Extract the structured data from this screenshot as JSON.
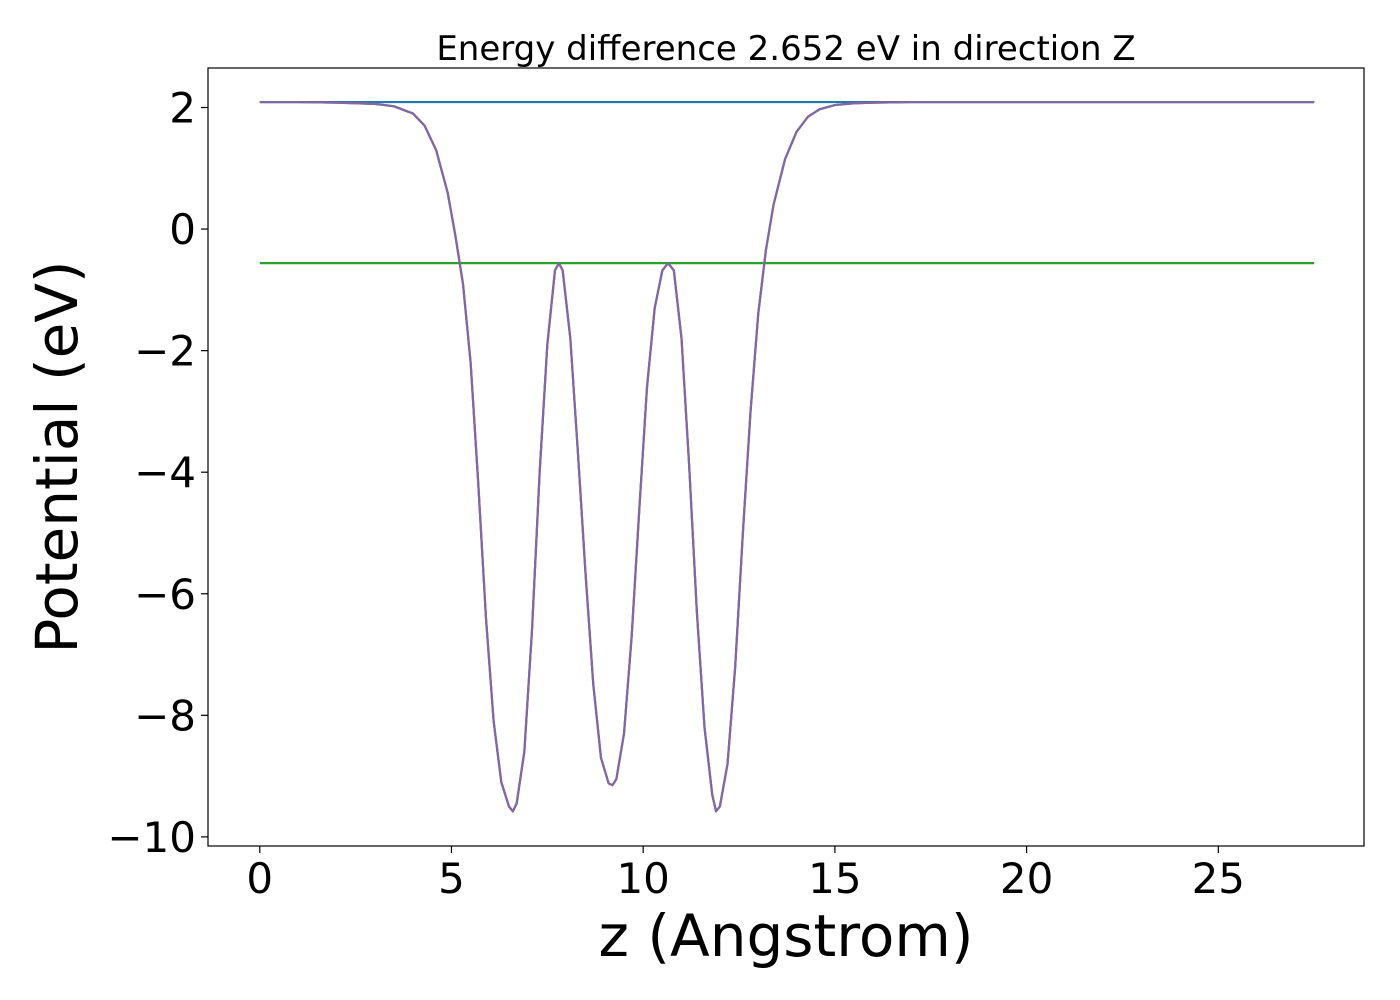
{
  "chart_data": {
    "type": "line",
    "title": "Energy difference 2.652 eV in direction Z",
    "xlabel": "z (Angstrom)",
    "ylabel": "Potential (eV)",
    "xlim": [
      -1.35,
      28.8
    ],
    "ylim": [
      -10.15,
      2.65
    ],
    "xticks": [
      0,
      5,
      10,
      15,
      20,
      25
    ],
    "xtick_labels": [
      "0",
      "5",
      "10",
      "15",
      "20",
      "25"
    ],
    "yticks": [
      2,
      0,
      -2,
      -4,
      -6,
      -8,
      -10
    ],
    "ytick_labels": [
      "2",
      "0",
      "−2",
      "−4",
      "−6",
      "−8",
      "−10"
    ],
    "grid": false,
    "legend": "none",
    "series": [
      {
        "color": "#1f77b4",
        "x": [
          0,
          27.5
        ],
        "y": [
          2.09,
          2.09
        ]
      },
      {
        "color": "#2ca02c",
        "x": [
          0,
          27.5
        ],
        "y": [
          -0.56,
          -0.56
        ]
      },
      {
        "color": "#d62728",
        "x": [
          0.0,
          1.0,
          2.0,
          3.0,
          3.5,
          4.0,
          4.3,
          4.6,
          4.9,
          5.1,
          5.3,
          5.5,
          5.7,
          5.9,
          6.1,
          6.3,
          6.5,
          6.6,
          6.7,
          6.9,
          7.1,
          7.3,
          7.5,
          7.7,
          7.8,
          7.9,
          8.1,
          8.3,
          8.5,
          8.7,
          8.9,
          9.1,
          9.2,
          9.3,
          9.5,
          9.7,
          9.9,
          10.1,
          10.3,
          10.5,
          10.65,
          10.8,
          11.0,
          11.2,
          11.4,
          11.6,
          11.8,
          11.9,
          12.0,
          12.2,
          12.4,
          12.6,
          12.8,
          13.0,
          13.2,
          13.4,
          13.7,
          14.0,
          14.3,
          14.6,
          15.0,
          15.5,
          16.0,
          17.0,
          18.0,
          20.0,
          22.0,
          25.0,
          27.5
        ],
        "y": [
          2.09,
          2.09,
          2.08,
          2.06,
          2.02,
          1.9,
          1.7,
          1.3,
          0.6,
          -0.1,
          -0.9,
          -2.2,
          -4.2,
          -6.4,
          -8.1,
          -9.1,
          -9.5,
          -9.58,
          -9.45,
          -8.6,
          -6.6,
          -4.0,
          -1.9,
          -0.68,
          -0.56,
          -0.68,
          -1.8,
          -3.7,
          -5.7,
          -7.5,
          -8.7,
          -9.12,
          -9.15,
          -9.05,
          -8.3,
          -6.7,
          -4.6,
          -2.6,
          -1.3,
          -0.68,
          -0.56,
          -0.68,
          -1.8,
          -3.9,
          -6.3,
          -8.2,
          -9.3,
          -9.58,
          -9.5,
          -8.8,
          -7.2,
          -5.0,
          -3.0,
          -1.4,
          -0.35,
          0.4,
          1.15,
          1.6,
          1.85,
          1.97,
          2.04,
          2.07,
          2.08,
          2.09,
          2.09,
          2.09,
          2.09,
          2.09,
          2.09
        ]
      },
      {
        "color": "#7c6aa8",
        "x": [
          0.0,
          1.0,
          2.0,
          3.0,
          3.5,
          4.0,
          4.3,
          4.6,
          4.9,
          5.1,
          5.3,
          5.5,
          5.7,
          5.9,
          6.1,
          6.3,
          6.5,
          6.6,
          6.7,
          6.9,
          7.1,
          7.3,
          7.5,
          7.7,
          7.8,
          7.9,
          8.1,
          8.3,
          8.5,
          8.7,
          8.9,
          9.1,
          9.2,
          9.3,
          9.5,
          9.7,
          9.9,
          10.1,
          10.3,
          10.5,
          10.65,
          10.8,
          11.0,
          11.2,
          11.4,
          11.6,
          11.8,
          11.9,
          12.0,
          12.2,
          12.4,
          12.6,
          12.8,
          13.0,
          13.2,
          13.4,
          13.7,
          14.0,
          14.3,
          14.6,
          15.0,
          15.5,
          16.0,
          17.0,
          18.0,
          20.0,
          22.0,
          25.0,
          27.5
        ],
        "y": [
          2.09,
          2.09,
          2.08,
          2.06,
          2.02,
          1.9,
          1.7,
          1.3,
          0.6,
          -0.1,
          -0.9,
          -2.2,
          -4.2,
          -6.4,
          -8.1,
          -9.1,
          -9.5,
          -9.58,
          -9.45,
          -8.6,
          -6.6,
          -4.0,
          -1.9,
          -0.68,
          -0.56,
          -0.68,
          -1.8,
          -3.7,
          -5.7,
          -7.5,
          -8.7,
          -9.12,
          -9.15,
          -9.05,
          -8.3,
          -6.7,
          -4.6,
          -2.6,
          -1.3,
          -0.68,
          -0.56,
          -0.68,
          -1.8,
          -3.9,
          -6.3,
          -8.2,
          -9.3,
          -9.58,
          -9.5,
          -8.8,
          -7.2,
          -5.0,
          -3.0,
          -1.4,
          -0.35,
          0.4,
          1.15,
          1.6,
          1.85,
          1.97,
          2.04,
          2.07,
          2.08,
          2.09,
          2.09,
          2.09,
          2.09,
          2.09,
          2.09
        ]
      }
    ]
  }
}
